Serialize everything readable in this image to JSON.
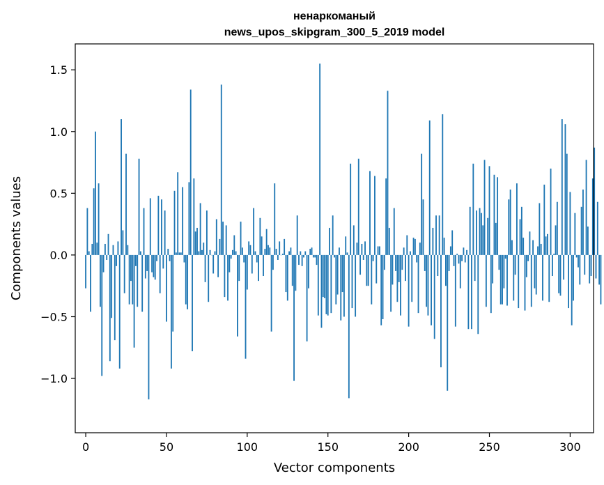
{
  "chart_data": {
    "type": "bar",
    "title": "ненаркоманый",
    "subtitle": "news_upos_skipgram_300_5_2019 model",
    "xlabel": "Vector components",
    "ylabel": "Components values",
    "xlim": [
      -6.5,
      314.5
    ],
    "ylim": [
      -1.44,
      1.71
    ],
    "xticks": [
      0,
      50,
      100,
      150,
      200,
      250,
      300
    ],
    "yticks": [
      -1.0,
      -0.5,
      0.0,
      0.5,
      1.0,
      1.5
    ],
    "xtick_labels": [
      "0",
      "50",
      "100",
      "150",
      "200",
      "250",
      "300"
    ],
    "ytick_labels": [
      "−1.0",
      "−0.5",
      "0.0",
      "0.5",
      "1.0",
      "1.5"
    ],
    "bar_color": "#1f77b4",
    "grid": false,
    "values": [
      -0.27,
      0.38,
      0.03,
      -0.46,
      0.09,
      0.54,
      1.0,
      0.1,
      0.58,
      -0.42,
      -0.98,
      -0.14,
      0.09,
      -0.04,
      0.17,
      -0.86,
      -0.51,
      0.08,
      -0.69,
      -0.09,
      0.11,
      -0.92,
      1.1,
      0.2,
      -0.31,
      0.82,
      0.08,
      -0.4,
      -0.21,
      -0.4,
      -0.75,
      -0.09,
      -0.42,
      0.78,
      0.03,
      -0.46,
      0.38,
      -0.19,
      -0.13,
      -1.17,
      0.46,
      -0.14,
      -0.18,
      -0.2,
      -0.05,
      0.48,
      -0.31,
      0.45,
      -0.11,
      0.36,
      -0.54,
      0.05,
      -0.05,
      -0.92,
      -0.62,
      0.52,
      0.02,
      0.67,
      0.02,
      0.02,
      0.55,
      -0.06,
      -0.4,
      -0.44,
      0.59,
      1.34,
      -0.78,
      0.62,
      0.19,
      0.22,
      0.03,
      0.42,
      0.04,
      0.1,
      -0.22,
      0.36,
      -0.38,
      0.04,
      0.0,
      -0.15,
      0.03,
      0.29,
      -0.18,
      0.13,
      1.38,
      0.27,
      -0.34,
      0.24,
      -0.37,
      -0.14,
      -0.03,
      0.04,
      0.16,
      0.03,
      -0.66,
      -0.21,
      0.27,
      0.06,
      -0.06,
      -0.84,
      -0.28,
      0.11,
      0.08,
      -0.15,
      0.38,
      0.03,
      -0.06,
      -0.21,
      0.3,
      0.15,
      -0.17,
      0.05,
      0.21,
      0.08,
      0.06,
      -0.62,
      -0.12,
      0.58,
      0.05,
      -0.04,
      0.11,
      0.0,
      0.01,
      0.13,
      -0.3,
      -0.37,
      0.03,
      0.06,
      -0.25,
      -1.02,
      -0.29,
      0.32,
      -0.08,
      0.03,
      -0.09,
      -0.02,
      0.03,
      -0.7,
      -0.27,
      0.05,
      0.06,
      -0.02,
      -0.02,
      -0.08,
      -0.49,
      1.55,
      -0.59,
      -0.34,
      -0.35,
      -0.48,
      -0.49,
      0.22,
      -0.47,
      0.32,
      -0.02,
      -0.4,
      -0.32,
      0.06,
      -0.53,
      -0.3,
      -0.5,
      0.15,
      0.02,
      -1.16,
      0.74,
      -0.43,
      0.24,
      -0.5,
      0.1,
      0.78,
      -0.16,
      0.09,
      -0.04,
      0.11,
      -0.25,
      -0.25,
      0.68,
      -0.4,
      -0.05,
      0.64,
      -0.23,
      0.07,
      0.07,
      -0.57,
      -0.52,
      -0.12,
      0.62,
      1.33,
      0.22,
      -0.46,
      -0.24,
      0.38,
      -0.13,
      -0.38,
      -0.22,
      -0.49,
      -0.12,
      0.06,
      -0.21,
      0.16,
      -0.58,
      0.03,
      -0.38,
      0.14,
      0.13,
      -0.06,
      -0.47,
      0.1,
      0.82,
      0.45,
      -0.13,
      -0.42,
      -0.49,
      1.09,
      -0.57,
      0.22,
      -0.68,
      0.32,
      -0.17,
      0.32,
      -0.91,
      1.14,
      0.14,
      -0.25,
      -1.1,
      -0.13,
      0.07,
      0.2,
      -0.09,
      -0.58,
      0.01,
      -0.07,
      -0.27,
      -0.05,
      0.06,
      -0.06,
      0.04,
      -0.6,
      0.39,
      -0.6,
      0.74,
      -0.21,
      0.36,
      -0.64,
      0.38,
      0.34,
      0.24,
      0.77,
      -0.42,
      0.3,
      0.72,
      -0.47,
      -0.23,
      0.65,
      0.26,
      0.63,
      -0.12,
      -0.4,
      -0.4,
      -0.27,
      -0.03,
      -0.41,
      0.45,
      0.53,
      0.12,
      -0.37,
      -0.16,
      0.58,
      -0.43,
      0.29,
      0.39,
      0.14,
      -0.45,
      -0.18,
      -0.05,
      0.19,
      -0.42,
      0.12,
      -0.27,
      -0.32,
      0.07,
      0.42,
      0.09,
      -0.37,
      0.57,
      0.15,
      0.17,
      -0.38,
      0.7,
      -0.17,
      0.01,
      0.24,
      0.43,
      -0.31,
      -0.33,
      1.1,
      -0.2,
      1.06,
      0.82,
      -0.43,
      0.51,
      -0.57,
      -0.37,
      0.34,
      -0.02,
      -0.1,
      -0.24,
      0.39,
      0.53,
      -0.16,
      0.77,
      0.23,
      -0.23,
      -0.17,
      0.62,
      0.87,
      -0.19,
      0.43,
      -0.24,
      -0.4
    ]
  }
}
